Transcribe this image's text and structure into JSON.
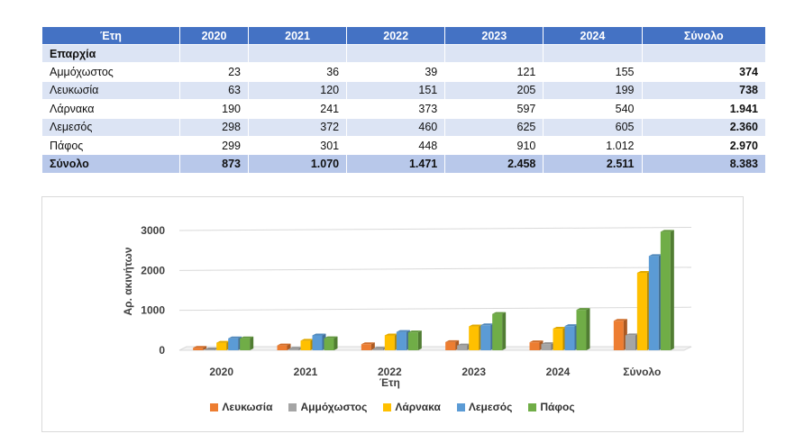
{
  "table": {
    "headers": [
      "Έτη",
      "2020",
      "2021",
      "2022",
      "2023",
      "2024",
      "Σύνολο"
    ],
    "section_label": "Επαρχία",
    "rows": [
      {
        "label": "Αμμόχωστος",
        "values": [
          "23",
          "36",
          "39",
          "121",
          "155"
        ],
        "total": "374"
      },
      {
        "label": "Λευκωσία",
        "values": [
          "63",
          "120",
          "151",
          "205",
          "199"
        ],
        "total": "738"
      },
      {
        "label": "Λάρνακα",
        "values": [
          "190",
          "241",
          "373",
          "597",
          "540"
        ],
        "total": "1.941"
      },
      {
        "label": "Λεμεσός",
        "values": [
          "298",
          "372",
          "460",
          "625",
          "605"
        ],
        "total": "2.360"
      },
      {
        "label": "Πάφος",
        "values": [
          "299",
          "301",
          "448",
          "910",
          "1.012"
        ],
        "total": "2.970"
      }
    ],
    "totals": {
      "label": "Σύνολο",
      "values": [
        "873",
        "1.070",
        "1.471",
        "2.458",
        "2.511"
      ],
      "total": "8.383"
    }
  },
  "chart_data": {
    "type": "bar",
    "categories": [
      "2020",
      "2021",
      "2022",
      "2023",
      "2024",
      "Σύνολο"
    ],
    "series": [
      {
        "name": "Λευκωσία",
        "color": "#ed7d31",
        "values": [
          63,
          120,
          151,
          205,
          199,
          738
        ]
      },
      {
        "name": "Αμμόχωστος",
        "color": "#a5a5a5",
        "values": [
          23,
          36,
          39,
          121,
          155,
          374
        ]
      },
      {
        "name": "Λάρνακα",
        "color": "#ffc000",
        "values": [
          190,
          241,
          373,
          597,
          540,
          1941
        ]
      },
      {
        "name": "Λεμεσός",
        "color": "#5b9bd5",
        "values": [
          298,
          372,
          460,
          625,
          605,
          2360
        ]
      },
      {
        "name": "Πάφος",
        "color": "#70ad47",
        "values": [
          299,
          301,
          448,
          910,
          1012,
          2970
        ]
      }
    ],
    "xlabel": "Έτη",
    "ylabel": "Αρ. ακινήτων",
    "ylim": [
      0,
      3000
    ],
    "yticks": [
      "0",
      "1000",
      "2000",
      "3000"
    ],
    "grid": true,
    "legend": "bottom"
  }
}
